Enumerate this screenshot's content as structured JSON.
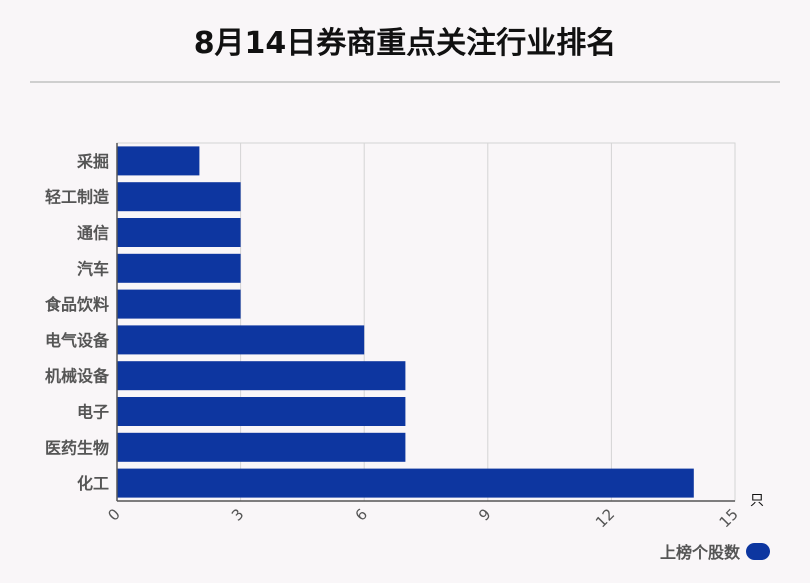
{
  "chart_data": {
    "type": "bar",
    "orientation": "horizontal",
    "title": "8月14日券商重点关注行业排名",
    "categories": [
      "采掘",
      "轻工制造",
      "通信",
      "汽车",
      "食品饮料",
      "电气设备",
      "机械设备",
      "电子",
      "医药生物",
      "化工"
    ],
    "series": [
      {
        "name": "上榜个股数",
        "values": [
          2,
          3,
          3,
          3,
          3,
          6,
          7,
          7,
          7,
          14
        ],
        "color": "#0d36a0"
      }
    ],
    "xlim": [
      0,
      15
    ],
    "xticks": [
      0,
      3,
      6,
      9,
      12,
      15
    ],
    "xunit": "只",
    "grid": true,
    "legend": "bottom-right"
  }
}
